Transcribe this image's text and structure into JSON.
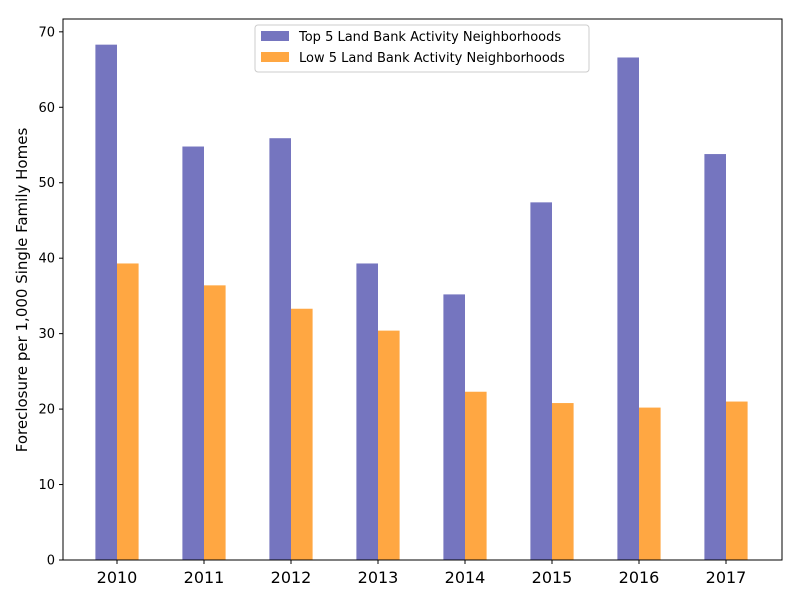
{
  "chart_data": {
    "type": "bar",
    "categories": [
      "2010",
      "2011",
      "2012",
      "2013",
      "2014",
      "2015",
      "2016",
      "2017"
    ],
    "series": [
      {
        "name": "Top 5 Land Bank Activity Neighborhoods",
        "color": "#7575bf",
        "values": [
          68.3,
          54.8,
          55.9,
          39.3,
          35.2,
          47.4,
          66.6,
          53.8
        ]
      },
      {
        "name": "Low 5 Land Bank Activity Neighborhoods",
        "color": "#ffa742",
        "values": [
          39.3,
          36.4,
          33.3,
          30.4,
          22.3,
          20.8,
          20.2,
          21.0
        ]
      }
    ],
    "xlabel": "",
    "ylabel": "Foreclosure per 1,000 Single Family Homes",
    "ylim": [
      0,
      71.7
    ],
    "yticks": [
      0,
      10,
      20,
      30,
      40,
      50,
      60,
      70
    ],
    "grid": false,
    "legend_position": "top-center"
  }
}
